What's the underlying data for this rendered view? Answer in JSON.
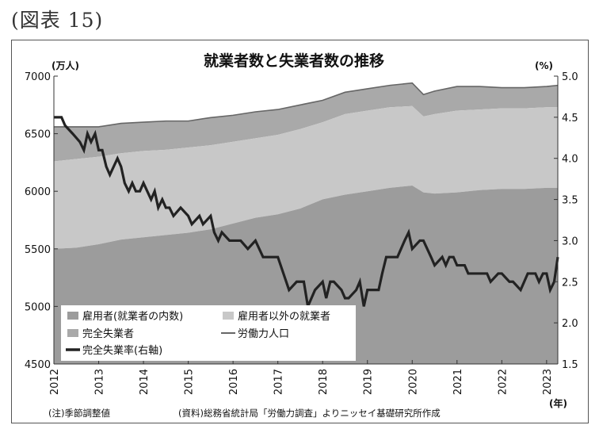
{
  "figure_label": "(図表 15)",
  "footer": {
    "note": "(注)季節調整値",
    "source": "(資料)総務省統計局「労働力調査」よりニッセイ基礎研究所作成"
  },
  "colors": {
    "employees": "#9c9c9c",
    "other_employed": "#c8c8c8",
    "unemployed": "#a9a9a9",
    "labor_force_line": "#666666",
    "unemployment_rate_line": "#222222"
  },
  "chart_data": {
    "type": "area",
    "title": "就業者数と失業者数の推移",
    "y_left_unit": "(万人)",
    "y_right_unit": "(%)",
    "x_unit": "(年)",
    "y_left_range": [
      4500,
      7000
    ],
    "y_right_range": [
      1.5,
      5.0
    ],
    "y_left_ticks": [
      "4500",
      "5000",
      "5500",
      "6000",
      "6500",
      "7000"
    ],
    "y_right_ticks": [
      "1.5",
      "2.0",
      "2.5",
      "3.0",
      "3.5",
      "4.0",
      "4.5",
      "5.0"
    ],
    "x_ticks": [
      "2012",
      "2013",
      "2014",
      "2015",
      "2016",
      "2017",
      "2018",
      "2019",
      "2020",
      "2021",
      "2022",
      "2023"
    ],
    "x_range": [
      2012.0,
      2023.25
    ],
    "grid": false,
    "legend": [
      {
        "key": "employees",
        "label": "雇用者(就業者の内数)",
        "kind": "box"
      },
      {
        "key": "other_employed",
        "label": "雇用者以外の就業者",
        "kind": "box"
      },
      {
        "key": "unemployed",
        "label": "完全失業者",
        "kind": "box"
      },
      {
        "key": "labor_force",
        "label": "労働力人口",
        "kind": "thin-line"
      },
      {
        "key": "unemployment_rate",
        "label": "完全失業率(右軸)",
        "kind": "thick-line"
      }
    ],
    "legend_position": "bottom-left",
    "series": {
      "time": [
        2012.0,
        2012.5,
        2013.0,
        2013.5,
        2014.0,
        2014.5,
        2015.0,
        2015.5,
        2016.0,
        2016.5,
        2017.0,
        2017.5,
        2018.0,
        2018.5,
        2019.0,
        2019.5,
        2020.0,
        2020.25,
        2020.5,
        2021.0,
        2021.5,
        2022.0,
        2022.5,
        2023.0,
        2023.25
      ],
      "employees": [
        5500,
        5510,
        5540,
        5580,
        5600,
        5620,
        5640,
        5670,
        5720,
        5770,
        5800,
        5850,
        5930,
        5970,
        6000,
        6030,
        6050,
        5990,
        5980,
        5990,
        6010,
        6020,
        6020,
        6030,
        6030
      ],
      "employed_total": [
        6260,
        6280,
        6300,
        6330,
        6350,
        6360,
        6380,
        6400,
        6430,
        6460,
        6490,
        6540,
        6600,
        6670,
        6700,
        6730,
        6740,
        6650,
        6670,
        6700,
        6710,
        6720,
        6720,
        6730,
        6730
      ],
      "labor_force": [
        6560,
        6560,
        6560,
        6590,
        6600,
        6610,
        6610,
        6640,
        6660,
        6690,
        6710,
        6750,
        6790,
        6860,
        6890,
        6920,
        6940,
        6840,
        6870,
        6910,
        6910,
        6900,
        6900,
        6910,
        6920
      ]
    },
    "unemployment_rate": {
      "time": [
        2012.0,
        2012.17,
        2012.25,
        2012.42,
        2012.58,
        2012.67,
        2012.75,
        2012.83,
        2012.92,
        2013.0,
        2013.08,
        2013.17,
        2013.25,
        2013.42,
        2013.5,
        2013.58,
        2013.67,
        2013.75,
        2013.83,
        2013.92,
        2014.0,
        2014.17,
        2014.25,
        2014.33,
        2014.42,
        2014.5,
        2014.58,
        2014.67,
        2014.83,
        2015.0,
        2015.08,
        2015.25,
        2015.33,
        2015.5,
        2015.58,
        2015.67,
        2015.75,
        2015.92,
        2016.0,
        2016.17,
        2016.33,
        2016.5,
        2016.67,
        2016.75,
        2016.83,
        2017.0,
        2017.25,
        2017.42,
        2017.5,
        2017.58,
        2017.67,
        2017.83,
        2018.0,
        2018.08,
        2018.17,
        2018.25,
        2018.42,
        2018.5,
        2018.58,
        2018.75,
        2018.83,
        2018.92,
        2019.0,
        2019.17,
        2019.25,
        2019.33,
        2019.42,
        2019.67,
        2019.75,
        2019.83,
        2019.92,
        2020.0,
        2020.17,
        2020.25,
        2020.42,
        2020.5,
        2020.67,
        2020.75,
        2020.83,
        2020.92,
        2021.0,
        2021.08,
        2021.17,
        2021.25,
        2021.33,
        2021.42,
        2021.5,
        2021.67,
        2021.75,
        2021.92,
        2022.0,
        2022.17,
        2022.25,
        2022.42,
        2022.58,
        2022.67,
        2022.75,
        2022.83,
        2022.92,
        2023.0,
        2023.08,
        2023.17,
        2023.25
      ],
      "values": [
        4.5,
        4.5,
        4.4,
        4.3,
        4.2,
        4.1,
        4.3,
        4.2,
        4.3,
        4.1,
        4.1,
        3.9,
        3.8,
        4.0,
        3.9,
        3.7,
        3.6,
        3.7,
        3.6,
        3.6,
        3.7,
        3.5,
        3.6,
        3.4,
        3.5,
        3.4,
        3.4,
        3.3,
        3.4,
        3.3,
        3.2,
        3.3,
        3.2,
        3.3,
        3.1,
        3.0,
        3.1,
        3.0,
        3.0,
        3.0,
        2.9,
        3.0,
        2.8,
        2.8,
        2.8,
        2.8,
        2.4,
        2.5,
        2.5,
        2.5,
        2.2,
        2.4,
        2.5,
        2.3,
        2.5,
        2.5,
        2.4,
        2.3,
        2.3,
        2.4,
        2.5,
        2.2,
        2.4,
        2.4,
        2.4,
        2.6,
        2.8,
        2.8,
        2.9,
        3.0,
        3.1,
        2.9,
        3.0,
        3.0,
        2.8,
        2.7,
        2.8,
        2.7,
        2.8,
        2.8,
        2.7,
        2.7,
        2.7,
        2.6,
        2.6,
        2.6,
        2.6,
        2.6,
        2.5,
        2.6,
        2.6,
        2.5,
        2.5,
        2.4,
        2.6,
        2.6,
        2.6,
        2.5,
        2.6,
        2.6,
        2.4,
        2.5,
        2.8
      ]
    }
  }
}
